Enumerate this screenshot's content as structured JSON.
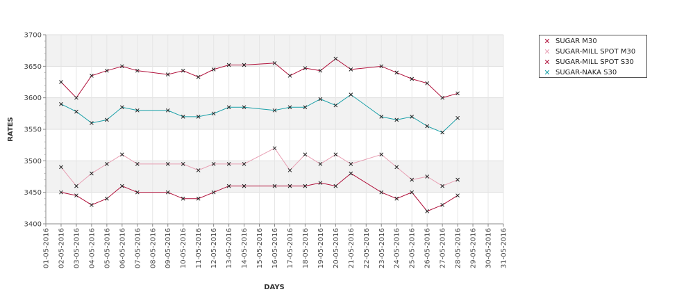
{
  "chart_data": {
    "type": "line",
    "xlabel": "DAYS",
    "ylabel": "RATES",
    "ylim": [
      3400,
      3700
    ],
    "yticks": [
      "3400",
      "3450",
      "3500",
      "3550",
      "3600",
      "3650",
      "3700"
    ],
    "categories": [
      "01-05-2016",
      "02-05-2016",
      "03-05-2016",
      "04-05-2016",
      "05-05-2016",
      "06-05-2016",
      "07-05-2016",
      "08-05-2016",
      "09-05-2016",
      "10-05-2016",
      "11-05-2016",
      "12-05-2016",
      "13-05-2016",
      "14-05-2016",
      "15-05-2016",
      "16-05-2016",
      "17-05-2016",
      "18-05-2016",
      "19-05-2016",
      "20-05-2016",
      "21-05-2016",
      "22-05-2016",
      "23-05-2016",
      "24-05-2016",
      "25-05-2016",
      "26-05-2016",
      "27-05-2016",
      "28-05-2016",
      "29-05-2016",
      "30-05-2016",
      "31-05-2016"
    ],
    "grid": true,
    "legend_position": "top-right",
    "series": [
      {
        "name": "SUGAR M30",
        "color": "#b0103a",
        "points": [
          [
            2,
            3625
          ],
          [
            3,
            3600
          ],
          [
            4,
            3635
          ],
          [
            5,
            3643
          ],
          [
            6,
            3650
          ],
          [
            7,
            3643
          ],
          [
            9,
            3637
          ],
          [
            10,
            3643
          ],
          [
            11,
            3633
          ],
          [
            12,
            3645
          ],
          [
            13,
            3652
          ],
          [
            14,
            3652
          ],
          [
            16,
            3655
          ],
          [
            17,
            3635
          ],
          [
            18,
            3647
          ],
          [
            19,
            3643
          ],
          [
            20,
            3662
          ],
          [
            21,
            3645
          ],
          [
            23,
            3650
          ],
          [
            24,
            3640
          ],
          [
            25,
            3630
          ],
          [
            26,
            3623
          ],
          [
            27,
            3600
          ],
          [
            28,
            3607
          ]
        ]
      },
      {
        "name": "SUGAR-MILL SPOT M30",
        "color": "#e8a0b4",
        "points": [
          [
            2,
            3490
          ],
          [
            3,
            3460
          ],
          [
            4,
            3480
          ],
          [
            5,
            3495
          ],
          [
            6,
            3510
          ],
          [
            7,
            3495
          ],
          [
            9,
            3495
          ],
          [
            10,
            3495
          ],
          [
            11,
            3485
          ],
          [
            12,
            3495
          ],
          [
            13,
            3495
          ],
          [
            14,
            3495
          ],
          [
            16,
            3520
          ],
          [
            17,
            3485
          ],
          [
            18,
            3510
          ],
          [
            19,
            3495
          ],
          [
            20,
            3510
          ],
          [
            21,
            3495
          ],
          [
            23,
            3510
          ],
          [
            24,
            3490
          ],
          [
            25,
            3470
          ],
          [
            26,
            3475
          ],
          [
            27,
            3460
          ],
          [
            28,
            3470
          ]
        ]
      },
      {
        "name": "SUGAR-MILL SPOT S30",
        "color": "#b0103a",
        "points": [
          [
            2,
            3450
          ],
          [
            3,
            3445
          ],
          [
            4,
            3430
          ],
          [
            5,
            3440
          ],
          [
            6,
            3460
          ],
          [
            7,
            3450
          ],
          [
            9,
            3450
          ],
          [
            10,
            3440
          ],
          [
            11,
            3440
          ],
          [
            12,
            3450
          ],
          [
            13,
            3460
          ],
          [
            14,
            3460
          ],
          [
            16,
            3460
          ],
          [
            17,
            3460
          ],
          [
            18,
            3460
          ],
          [
            19,
            3465
          ],
          [
            20,
            3460
          ],
          [
            21,
            3480
          ],
          [
            23,
            3450
          ],
          [
            24,
            3440
          ],
          [
            25,
            3450
          ],
          [
            26,
            3420
          ],
          [
            27,
            3430
          ],
          [
            28,
            3445
          ]
        ]
      },
      {
        "name": "SUGAR-NAKA S30",
        "color": "#1aa0a8",
        "points": [
          [
            2,
            3590
          ],
          [
            3,
            3578
          ],
          [
            4,
            3560
          ],
          [
            5,
            3565
          ],
          [
            6,
            3585
          ],
          [
            7,
            3580
          ],
          [
            9,
            3580
          ],
          [
            10,
            3570
          ],
          [
            11,
            3570
          ],
          [
            12,
            3575
          ],
          [
            13,
            3585
          ],
          [
            14,
            3585
          ],
          [
            16,
            3580
          ],
          [
            17,
            3585
          ],
          [
            18,
            3585
          ],
          [
            19,
            3598
          ],
          [
            20,
            3588
          ],
          [
            21,
            3605
          ],
          [
            23,
            3570
          ],
          [
            24,
            3565
          ],
          [
            25,
            3570
          ],
          [
            26,
            3555
          ],
          [
            27,
            3545
          ],
          [
            28,
            3568
          ]
        ]
      }
    ]
  }
}
